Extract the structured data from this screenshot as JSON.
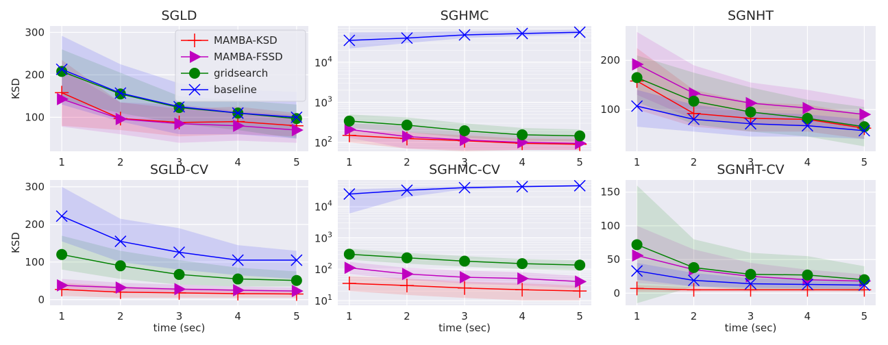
{
  "legend": [
    {
      "name": "MAMBA-KSD",
      "color": "#ff0000",
      "marker": "plus"
    },
    {
      "name": "MAMBA-FSSD",
      "color": "#bf00bf",
      "marker": "triangle-right"
    },
    {
      "name": "gridsearch",
      "color": "#008000",
      "marker": "circle"
    },
    {
      "name": "baseline",
      "color": "#0000ff",
      "marker": "x"
    }
  ],
  "chart_data": [
    {
      "type": "line",
      "title": "SGLD",
      "xlabel": "",
      "ylabel": "KSD",
      "x": [
        1,
        2,
        3,
        4,
        5
      ],
      "xlim": [
        0.8,
        5.2
      ],
      "ylim": [
        20,
        315
      ],
      "yscale": "linear",
      "yticks": [
        100,
        200,
        300
      ],
      "show_legend": true,
      "legend_position": "upper-right",
      "grid": true,
      "series": [
        {
          "name": "MAMBA-KSD",
          "color": "#ff0000",
          "marker": "plus",
          "values": [
            158,
            97,
            88,
            90,
            80
          ],
          "lower": [
            80,
            70,
            55,
            60,
            55
          ],
          "upper": [
            235,
            135,
            120,
            125,
            110
          ]
        },
        {
          "name": "MAMBA-FSSD",
          "color": "#bf00bf",
          "marker": "triangle-right",
          "values": [
            143,
            96,
            85,
            80,
            70
          ],
          "lower": [
            78,
            60,
            40,
            45,
            40
          ],
          "upper": [
            215,
            135,
            130,
            115,
            105
          ]
        },
        {
          "name": "gridsearch",
          "color": "#008000",
          "marker": "circle",
          "values": [
            208,
            155,
            123,
            110,
            97
          ],
          "lower": [
            140,
            110,
            85,
            70,
            50
          ],
          "upper": [
            260,
            205,
            150,
            140,
            130
          ]
        },
        {
          "name": "baseline",
          "color": "#0000ff",
          "marker": "x",
          "values": [
            213,
            157,
            125,
            110,
            100
          ],
          "lower": [
            130,
            90,
            60,
            60,
            50
          ],
          "upper": [
            292,
            225,
            180,
            165,
            160
          ]
        }
      ]
    },
    {
      "type": "line",
      "title": "SGHMC",
      "xlabel": "",
      "ylabel": "",
      "x": [
        1,
        2,
        3,
        4,
        5
      ],
      "xlim": [
        0.8,
        5.2
      ],
      "ylim": [
        60,
        80000
      ],
      "yscale": "log",
      "yticks": [
        100,
        1000,
        10000
      ],
      "show_legend": false,
      "grid": true,
      "series": [
        {
          "name": "MAMBA-KSD",
          "color": "#ff0000",
          "marker": "plus",
          "values": [
            150,
            125,
            110,
            95,
            90
          ],
          "lower": [
            100,
            70,
            60,
            65,
            65
          ],
          "upper": [
            200,
            180,
            150,
            125,
            120
          ]
        },
        {
          "name": "MAMBA-FSSD",
          "color": "#bf00bf",
          "marker": "triangle-right",
          "values": [
            210,
            140,
            115,
            100,
            95
          ],
          "lower": [
            130,
            70,
            65,
            65,
            65
          ],
          "upper": [
            300,
            260,
            180,
            150,
            140
          ]
        },
        {
          "name": "gridsearch",
          "color": "#008000",
          "marker": "circle",
          "values": [
            340,
            270,
            195,
            155,
            145
          ],
          "lower": [
            230,
            180,
            130,
            110,
            105
          ],
          "upper": [
            500,
            420,
            300,
            230,
            210
          ]
        },
        {
          "name": "baseline",
          "color": "#0000ff",
          "marker": "x",
          "values": [
            35000,
            40000,
            48000,
            52000,
            56000
          ],
          "lower": [
            22000,
            30000,
            40000,
            45000,
            50000
          ],
          "upper": [
            55000,
            56000,
            60000,
            62000,
            64000
          ]
        }
      ]
    },
    {
      "type": "line",
      "title": "SGNHT",
      "xlabel": "",
      "ylabel": "",
      "x": [
        1,
        2,
        3,
        4,
        5
      ],
      "xlim": [
        0.8,
        5.2
      ],
      "ylim": [
        15,
        270
      ],
      "yscale": "linear",
      "yticks": [
        100,
        200
      ],
      "show_legend": false,
      "grid": true,
      "series": [
        {
          "name": "MAMBA-KSD",
          "color": "#ff0000",
          "marker": "plus",
          "values": [
            158,
            92,
            82,
            80,
            62
          ],
          "lower": [
            100,
            65,
            55,
            55,
            40
          ],
          "upper": [
            225,
            140,
            115,
            110,
            90
          ]
        },
        {
          "name": "MAMBA-FSSD",
          "color": "#bf00bf",
          "marker": "triangle-right",
          "values": [
            192,
            133,
            113,
            103,
            90
          ],
          "lower": [
            130,
            80,
            70,
            65,
            60
          ],
          "upper": [
            258,
            190,
            155,
            140,
            120
          ]
        },
        {
          "name": "gridsearch",
          "color": "#008000",
          "marker": "circle",
          "values": [
            165,
            117,
            95,
            82,
            65
          ],
          "lower": [
            115,
            70,
            55,
            45,
            25
          ],
          "upper": [
            210,
            175,
            145,
            120,
            105
          ]
        },
        {
          "name": "baseline",
          "color": "#0000ff",
          "marker": "x",
          "values": [
            107,
            80,
            71,
            67,
            57
          ],
          "lower": [
            65,
            55,
            45,
            45,
            40
          ],
          "upper": [
            140,
            110,
            95,
            90,
            80
          ]
        }
      ]
    },
    {
      "type": "line",
      "title": "SGLD-CV",
      "xlabel": "time (sec)",
      "ylabel": "KSD",
      "x": [
        1,
        2,
        3,
        4,
        5
      ],
      "xlim": [
        0.8,
        5.2
      ],
      "ylim": [
        -15,
        318
      ],
      "yscale": "linear",
      "yticks": [
        0,
        100,
        200,
        300
      ],
      "show_legend": false,
      "grid": true,
      "series": [
        {
          "name": "MAMBA-KSD",
          "color": "#ff0000",
          "marker": "plus",
          "values": [
            27,
            20,
            18,
            16,
            15
          ],
          "lower": [
            10,
            5,
            5,
            5,
            5
          ],
          "upper": [
            45,
            35,
            30,
            28,
            25
          ]
        },
        {
          "name": "MAMBA-FSSD",
          "color": "#bf00bf",
          "marker": "triangle-right",
          "values": [
            38,
            32,
            28,
            25,
            23
          ],
          "lower": [
            25,
            20,
            18,
            16,
            15
          ],
          "upper": [
            55,
            45,
            40,
            35,
            32
          ]
        },
        {
          "name": "gridsearch",
          "color": "#008000",
          "marker": "circle",
          "values": [
            120,
            90,
            67,
            55,
            51
          ],
          "lower": [
            80,
            55,
            40,
            35,
            35
          ],
          "upper": [
            170,
            130,
            105,
            85,
            75
          ]
        },
        {
          "name": "baseline",
          "color": "#0000ff",
          "marker": "x",
          "values": [
            222,
            155,
            126,
            105,
            105
          ],
          "lower": [
            155,
            100,
            80,
            65,
            55
          ],
          "upper": [
            300,
            215,
            190,
            145,
            130
          ]
        }
      ]
    },
    {
      "type": "line",
      "title": "SGHMC-CV",
      "xlabel": "time (sec)",
      "ylabel": "",
      "x": [
        1,
        2,
        3,
        4,
        5
      ],
      "xlim": [
        0.8,
        5.2
      ],
      "ylim": [
        7,
        70000
      ],
      "yscale": "log",
      "yticks": [
        10,
        100,
        1000,
        10000
      ],
      "show_legend": false,
      "grid": true,
      "series": [
        {
          "name": "MAMBA-KSD",
          "color": "#ff0000",
          "marker": "plus",
          "values": [
            35,
            30,
            25,
            22,
            20
          ],
          "lower": [
            20,
            15,
            12,
            10,
            10
          ],
          "upper": [
            60,
            50,
            40,
            35,
            30
          ]
        },
        {
          "name": "MAMBA-FSSD",
          "color": "#bf00bf",
          "marker": "triangle-right",
          "values": [
            110,
            70,
            55,
            50,
            40
          ],
          "lower": [
            70,
            45,
            35,
            30,
            25
          ],
          "upper": [
            170,
            110,
            90,
            80,
            60
          ]
        },
        {
          "name": "gridsearch",
          "color": "#008000",
          "marker": "circle",
          "values": [
            300,
            230,
            180,
            150,
            135
          ],
          "lower": [
            200,
            150,
            120,
            100,
            90
          ],
          "upper": [
            450,
            330,
            260,
            210,
            190
          ]
        },
        {
          "name": "baseline",
          "color": "#0000ff",
          "marker": "x",
          "values": [
            25000,
            33000,
            40000,
            43000,
            46000
          ],
          "lower": [
            6000,
            20000,
            35000,
            40000,
            44000
          ],
          "upper": [
            35000,
            40000,
            44000,
            46000,
            50000
          ]
        }
      ]
    },
    {
      "type": "line",
      "title": "SGNHT-CV",
      "xlabel": "time (sec)",
      "ylabel": "",
      "x": [
        1,
        2,
        3,
        4,
        5
      ],
      "xlim": [
        0.8,
        5.2
      ],
      "ylim": [
        -18,
        168
      ],
      "yscale": "linear",
      "yticks": [
        0,
        50,
        100,
        150
      ],
      "show_legend": false,
      "grid": true,
      "series": [
        {
          "name": "MAMBA-KSD",
          "color": "#ff0000",
          "marker": "plus",
          "values": [
            7,
            5,
            5,
            5,
            5
          ],
          "lower": [
            2,
            2,
            2,
            2,
            2
          ],
          "upper": [
            12,
            9,
            8,
            8,
            8
          ]
        },
        {
          "name": "MAMBA-FSSD",
          "color": "#bf00bf",
          "marker": "triangle-right",
          "values": [
            56,
            35,
            25,
            20,
            18
          ],
          "lower": [
            15,
            10,
            8,
            8,
            8
          ],
          "upper": [
            100,
            65,
            45,
            35,
            28
          ]
        },
        {
          "name": "gridsearch",
          "color": "#008000",
          "marker": "circle",
          "values": [
            72,
            38,
            28,
            27,
            20
          ],
          "lower": [
            -15,
            10,
            5,
            5,
            3
          ],
          "upper": [
            160,
            80,
            60,
            55,
            40
          ]
        },
        {
          "name": "baseline",
          "color": "#0000ff",
          "marker": "x",
          "values": [
            33,
            19,
            14,
            13,
            12
          ],
          "lower": [
            20,
            10,
            8,
            7,
            6
          ],
          "upper": [
            45,
            30,
            22,
            20,
            18
          ]
        }
      ]
    }
  ]
}
